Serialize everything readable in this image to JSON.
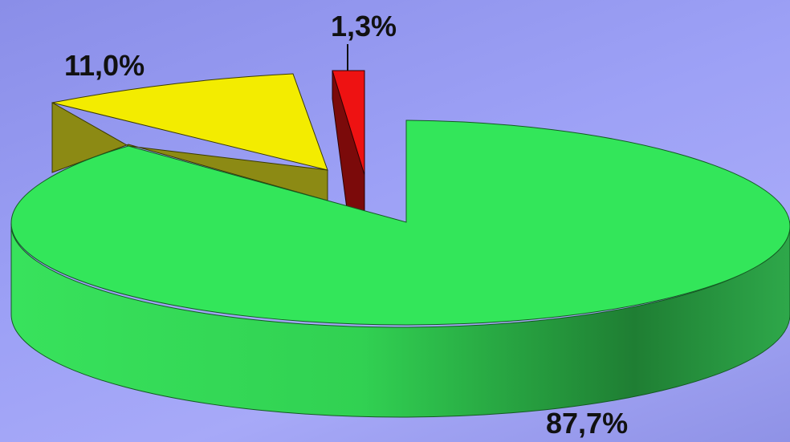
{
  "chart_data": {
    "type": "pie",
    "style": "3d-exploded",
    "title": "",
    "slices": [
      {
        "label": "87,7%",
        "value": 87.7,
        "color": "#33e65a",
        "dark": "#1f8f36"
      },
      {
        "label": "11,0%",
        "value": 11.0,
        "color": "#f2ec00",
        "dark": "#8f8a10"
      },
      {
        "label": "1,3%",
        "value": 1.3,
        "color": "#ee1111",
        "dark": "#7a0808"
      }
    ],
    "legend": "none"
  }
}
